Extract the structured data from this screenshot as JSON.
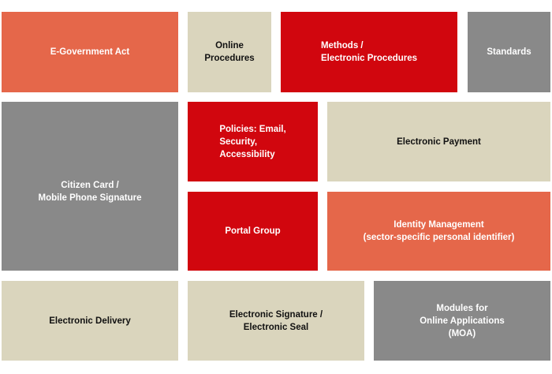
{
  "colors": {
    "orange": "#e5674a",
    "beige": "#dad5bd",
    "red": "#d1060e",
    "gray": "#898989"
  },
  "tiles": [
    {
      "label": "E-Government Act",
      "color": "orange"
    },
    {
      "label": "Online\nProcedures",
      "color": "beige"
    },
    {
      "label": "Methods /\nElectronic Procedures",
      "color": "red"
    },
    {
      "label": "Standards",
      "color": "gray"
    },
    {
      "label": "Citizen Card /\nMobile Phone Signature",
      "color": "gray"
    },
    {
      "label": "Policies: Email,\nSecurity,\nAccessibility",
      "color": "red"
    },
    {
      "label": "Electronic Payment",
      "color": "beige"
    },
    {
      "label": "Portal Group",
      "color": "red"
    },
    {
      "label": "Identity Management\n(sector-specific personal identifier)",
      "color": "orange"
    },
    {
      "label": "Electronic Delivery",
      "color": "beige"
    },
    {
      "label": "Electronic Signature /\nElectronic Seal",
      "color": "beige"
    },
    {
      "label": "Modules for\nOnline Applications\n(MOA)",
      "color": "gray"
    }
  ]
}
